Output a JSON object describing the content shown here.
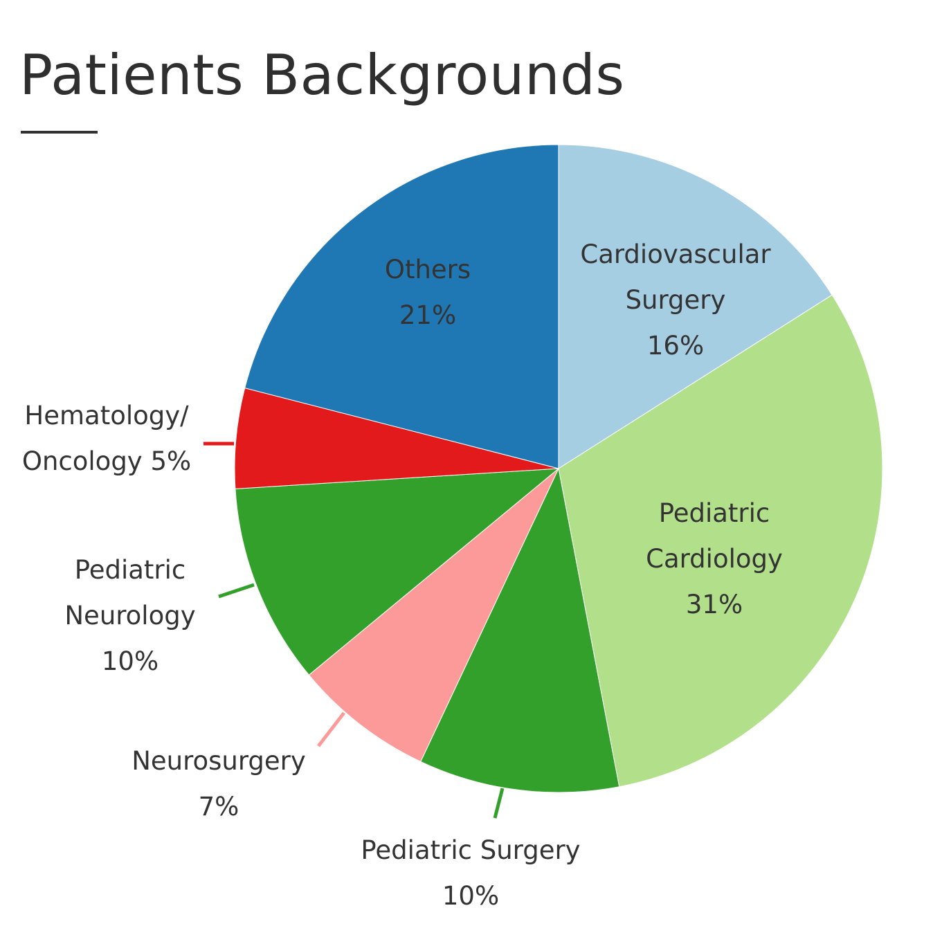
{
  "chart_data": {
    "type": "pie",
    "title": "Patients Backgrounds",
    "legend": "none",
    "slices": [
      {
        "name": "Cardiovascular Surgery",
        "label_lines": [
          "Cardiovascular",
          "Surgery",
          "16%"
        ],
        "value": 16,
        "color": "#a6cee3",
        "label_inside": true
      },
      {
        "name": "Pediatric Cardiology",
        "label_lines": [
          "Pediatric",
          "Cardiology",
          "31%"
        ],
        "value": 31,
        "color": "#b2df8a",
        "label_inside": true
      },
      {
        "name": "Pediatric Surgery",
        "label_lines": [
          "Pediatric Surgery",
          "10%"
        ],
        "value": 10,
        "color": "#33a02c",
        "label_inside": false
      },
      {
        "name": "Neurosurgery",
        "label_lines": [
          "Neurosurgery",
          "7%"
        ],
        "value": 7,
        "color": "#fb9a99",
        "label_inside": false
      },
      {
        "name": "Pediatric Neurology",
        "label_lines": [
          "Pediatric",
          "Neurology",
          "10%"
        ],
        "value": 10,
        "color": "#33a02c",
        "label_inside": false
      },
      {
        "name": "Hematology/Oncology",
        "label_lines": [
          "Hematology/",
          "Oncology 5%"
        ],
        "value": 5,
        "color": "#e31a1c",
        "label_inside": false
      },
      {
        "name": "Others",
        "label_lines": [
          "Others",
          "21%"
        ],
        "value": 21,
        "color": "#1f78b4",
        "label_inside": true
      }
    ]
  }
}
